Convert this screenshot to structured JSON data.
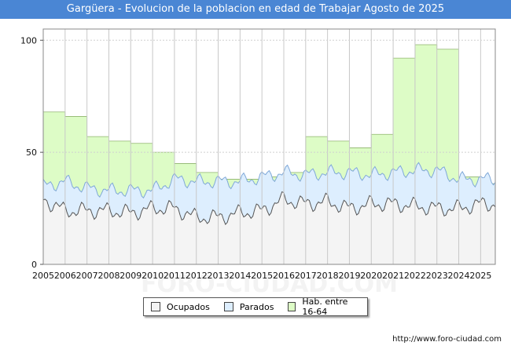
{
  "title": "Gargüera - Evolucion de la poblacion en edad de Trabajar Agosto de 2025",
  "source_url": "http://www.foro-ciudad.com",
  "chart_data": {
    "type": "area",
    "x_start": 2005,
    "x_end": 2025.67,
    "ylim": [
      0,
      105
    ],
    "y_ticks": [
      0,
      50,
      100
    ],
    "x_ticks": [
      2005,
      2006,
      2007,
      2008,
      2009,
      2010,
      2011,
      2012,
      2013,
      2014,
      2015,
      2016,
      2017,
      2018,
      2019,
      2020,
      2021,
      2022,
      2023,
      2024,
      2025
    ],
    "grid": true,
    "legend_position": "bottom",
    "series": [
      {
        "name": "Hab. entre 16-64",
        "color": "#ddfcc6",
        "step": true,
        "years": [
          2005,
          2006,
          2007,
          2008,
          2009,
          2010,
          2011,
          2012,
          2013,
          2014,
          2015,
          2016,
          2017,
          2018,
          2019,
          2020,
          2021,
          2022,
          2023,
          2024,
          2025
        ],
        "values": [
          68,
          66,
          57,
          55,
          54,
          50,
          45,
          41,
          38,
          38,
          39,
          41,
          57,
          55,
          52,
          58,
          92,
          98,
          96,
          39,
          36
        ]
      },
      {
        "name": "Parados",
        "color": "#ddeefe",
        "monthly_base": [
          35,
          37,
          34,
          33,
          33,
          33,
          38,
          37,
          37,
          37,
          39,
          41,
          40,
          41,
          41,
          40,
          41,
          42,
          42,
          38,
          38
        ],
        "amplitude": 3.5
      },
      {
        "name": "Ocupados",
        "color": "#f4f4f4",
        "monthly_base": [
          29,
          24,
          24,
          24,
          23,
          25,
          25,
          21,
          21,
          23,
          24,
          29,
          27,
          28,
          25,
          27,
          27,
          26,
          25,
          25,
          27
        ],
        "amplitude": 4
      }
    ]
  },
  "legend": [
    {
      "label": "Ocupados",
      "color": "#f4f4f4"
    },
    {
      "label": "Parados",
      "color": "#ddeefe"
    },
    {
      "label": "Hab. entre 16-64",
      "color": "#ddfcc6"
    }
  ],
  "watermark": "FORO-CIUDAD.COM"
}
